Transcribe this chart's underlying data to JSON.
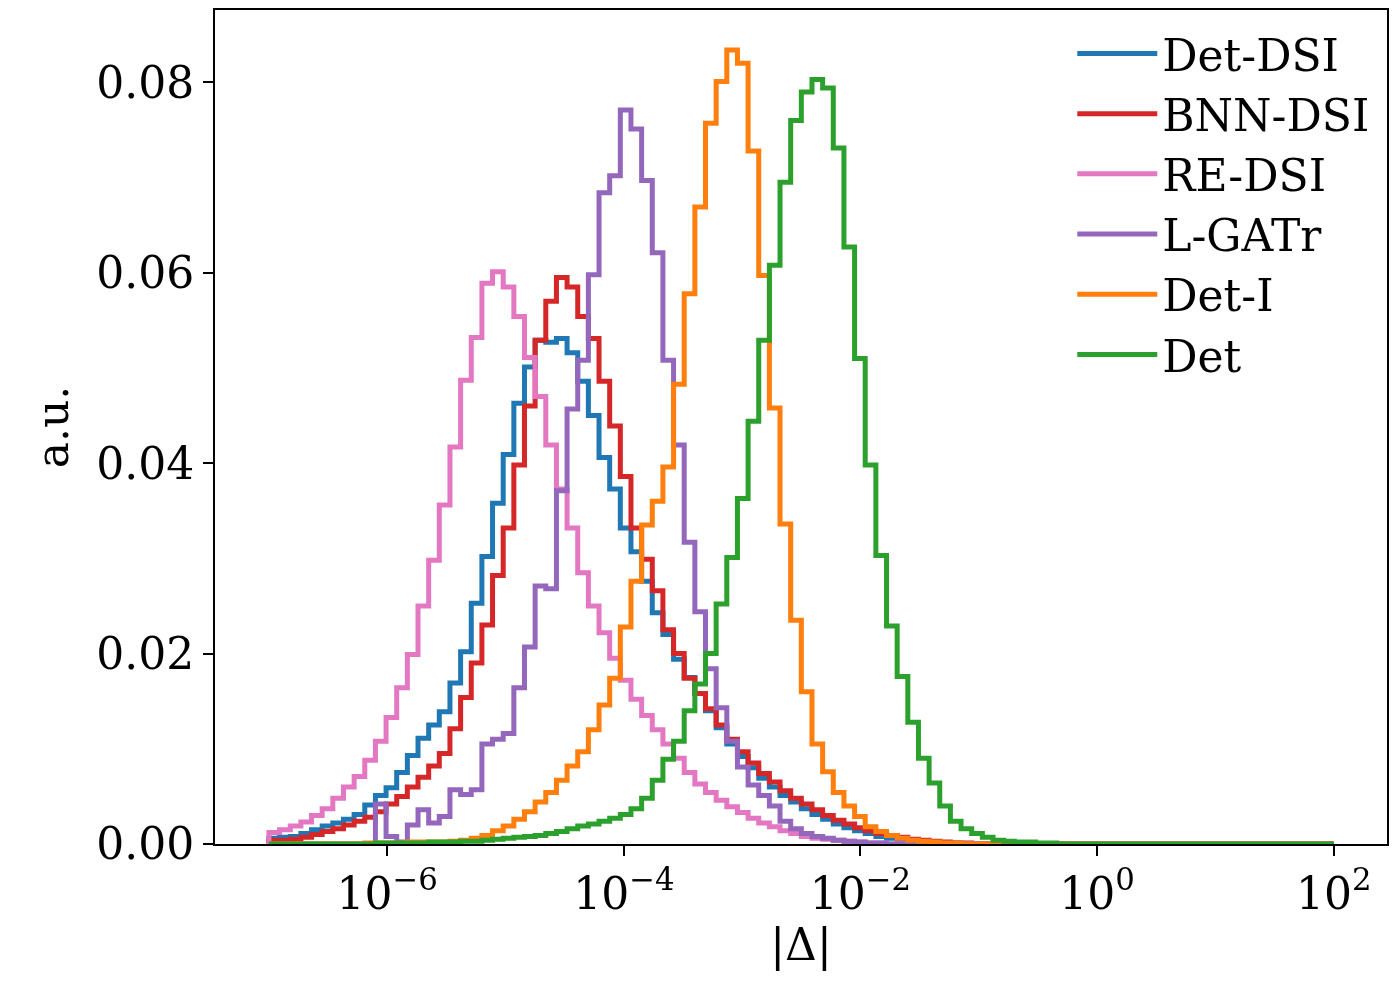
{
  "chart_data": {
    "type": "histogram",
    "xlabel": "|Δ|",
    "ylabel": "a.u.",
    "log": "x",
    "xlim": [
      3.5e-08,
      282
    ],
    "ylim": [
      0,
      0.0876
    ],
    "xticks": [
      {
        "value": 1e-06,
        "label": "10$^{−6}$"
      },
      {
        "value": 0.0001,
        "label": "10$^{−4}$"
      },
      {
        "value": 0.01,
        "label": "10$^{−2}$"
      },
      {
        "value": 1,
        "label": "10$^{0}$"
      },
      {
        "value": 100,
        "label": "10$^{2}$"
      }
    ],
    "yticks": [
      {
        "value": 0,
        "label": "0.00"
      },
      {
        "value": 0.02,
        "label": "0.02"
      },
      {
        "value": 0.04,
        "label": "0.04"
      },
      {
        "value": 0.06,
        "label": "0.06"
      },
      {
        "value": 0.08,
        "label": "0.08"
      }
    ],
    "legend": "top right",
    "line_style": "solid",
    "bins": [
      1e-07,
      1.23e-07,
      1.514e-07,
      1.862e-07,
      2.291e-07,
      2.818e-07,
      3.467e-07,
      4.266e-07,
      5.248e-07,
      6.457e-07,
      7.943e-07,
      9.772e-07,
      1.202e-06,
      1.479e-06,
      1.82e-06,
      2.239e-06,
      2.754e-06,
      3.388e-06,
      4.169e-06,
      5.129e-06,
      6.31e-06,
      7.762e-06,
      9.55e-06,
      1.175e-05,
      1.445e-05,
      1.778e-05,
      2.188e-05,
      2.692e-05,
      3.311e-05,
      4.074e-05,
      5.012e-05,
      6.166e-05,
      7.586e-05,
      9.333e-05,
      0.0001148,
      0.0001413,
      0.0001738,
      0.0002138,
      0.000263,
      0.0003236,
      0.0003981,
      0.0004898,
      0.0006026,
      0.0007413,
      0.000912,
      0.001122,
      0.00138,
      0.001698,
      0.002089,
      0.00257,
      0.003162,
      0.00389,
      0.004786,
      0.005888,
      0.007244,
      0.008913,
      0.01096,
      0.01349,
      0.0166,
      0.02042,
      0.02512,
      0.0309,
      0.03802,
      0.04677,
      0.05754,
      0.07079,
      0.0871,
      0.1072,
      0.1318,
      0.1622,
      0.1995,
      0.2455,
      0.302,
      0.3715,
      0.4571,
      0.5623,
      0.6918,
      0.8511,
      1.047,
      1.288,
      1.585,
      1.95,
      2.399,
      2.951,
      3.631,
      4.467,
      5.495,
      6.761,
      8.318,
      10.23,
      12.59,
      15.49,
      19.05,
      23.44,
      28.84,
      35.48,
      43.65,
      53.7,
      66.07,
      81.28,
      100
    ],
    "series": [
      {
        "name": "Det-DSI",
        "color": "#1f77b4",
        "values": [
          0.0006,
          0.0007,
          0.0008,
          0.0011,
          0.0015,
          0.0019,
          0.0022,
          0.0026,
          0.0031,
          0.0041,
          0.0051,
          0.0059,
          0.0075,
          0.0093,
          0.0111,
          0.0125,
          0.0139,
          0.0169,
          0.0202,
          0.0253,
          0.0302,
          0.0358,
          0.0409,
          0.0463,
          0.0501,
          0.0529,
          0.0527,
          0.0531,
          0.0516,
          0.0486,
          0.045,
          0.0406,
          0.0373,
          0.0332,
          0.0307,
          0.0276,
          0.0243,
          0.022,
          0.0194,
          0.0175,
          0.0158,
          0.014,
          0.0122,
          0.0105,
          0.0092,
          0.008,
          0.0069,
          0.006,
          0.0051,
          0.0044,
          0.0037,
          0.0031,
          0.0026,
          0.0021,
          0.0017,
          0.0014,
          0.0011,
          0.0008,
          0.0006,
          0.0005,
          0.0004,
          0.0003,
          0.0002,
          0.0001,
          0.0001,
          0,
          0,
          0,
          0,
          0,
          0,
          0,
          0,
          0,
          0,
          0,
          0,
          0,
          0,
          0,
          0,
          0,
          0,
          0,
          0,
          0,
          0,
          0,
          0,
          0,
          0,
          0,
          0,
          0,
          0,
          0,
          0,
          0,
          0,
          0
        ]
      },
      {
        "name": "BNN-DSI",
        "color": "#d62728",
        "values": [
          0.0004,
          0.0004,
          0.0005,
          0.0007,
          0.001,
          0.0013,
          0.0016,
          0.002,
          0.0024,
          0.0028,
          0.0034,
          0.0042,
          0.005,
          0.006,
          0.007,
          0.0082,
          0.0095,
          0.0121,
          0.0154,
          0.019,
          0.023,
          0.0282,
          0.0332,
          0.0398,
          0.046,
          0.0529,
          0.057,
          0.0595,
          0.0585,
          0.0554,
          0.0531,
          0.0486,
          0.0439,
          0.0386,
          0.0332,
          0.0299,
          0.0266,
          0.0225,
          0.02,
          0.0174,
          0.0158,
          0.0142,
          0.0125,
          0.011,
          0.0097,
          0.0085,
          0.0074,
          0.0065,
          0.0056,
          0.0048,
          0.0042,
          0.0036,
          0.003,
          0.0025,
          0.0021,
          0.0017,
          0.0014,
          0.0011,
          0.0009,
          0.0007,
          0.0005,
          0.0004,
          0.0003,
          0.0002,
          0.0001,
          0.0001,
          0,
          0,
          0,
          0,
          0,
          0,
          0,
          0,
          0,
          0,
          0,
          0,
          0,
          0,
          0,
          0,
          0,
          0,
          0,
          0,
          0,
          0,
          0,
          0,
          0,
          0,
          0,
          0,
          0,
          0,
          0,
          0,
          0,
          0
        ]
      },
      {
        "name": "RE-DSI",
        "color": "#e377c2",
        "values": [
          0.0012,
          0.0015,
          0.0019,
          0.0023,
          0.003,
          0.0037,
          0.0048,
          0.006,
          0.0071,
          0.0088,
          0.0108,
          0.0133,
          0.0164,
          0.0199,
          0.025,
          0.0298,
          0.0356,
          0.0417,
          0.0487,
          0.0532,
          0.0589,
          0.0601,
          0.0585,
          0.0554,
          0.0511,
          0.047,
          0.0419,
          0.0373,
          0.0332,
          0.0285,
          0.025,
          0.0222,
          0.0195,
          0.0172,
          0.0152,
          0.0135,
          0.012,
          0.0105,
          0.009,
          0.0075,
          0.0063,
          0.0054,
          0.0046,
          0.0039,
          0.0033,
          0.0027,
          0.0022,
          0.0018,
          0.0014,
          0.0011,
          0.0008,
          0.0006,
          0.0005,
          0.0004,
          0.0003,
          0.0002,
          0.0001,
          0.0001,
          0,
          0,
          0,
          0,
          0,
          0,
          0,
          0,
          0,
          0,
          0,
          0,
          0,
          0,
          0,
          0,
          0,
          0,
          0,
          0,
          0,
          0,
          0,
          0,
          0,
          0,
          0,
          0,
          0,
          0,
          0,
          0,
          0,
          0,
          0,
          0,
          0,
          0,
          0,
          0,
          0,
          0
        ]
      },
      {
        "name": "L-GATr",
        "color": "#9467bd",
        "values": [
          0,
          0,
          0,
          0,
          0,
          0,
          0,
          0,
          0,
          0,
          0.0042,
          0.0008,
          0.0002,
          0.002,
          0.0036,
          0.0022,
          0.0029,
          0.0057,
          0.0052,
          0.0057,
          0.0105,
          0.011,
          0.0116,
          0.0164,
          0.0207,
          0.0271,
          0.0268,
          0.0371,
          0.0457,
          0.0508,
          0.0598,
          0.0684,
          0.0702,
          0.0771,
          0.0751,
          0.0697,
          0.0621,
          0.0508,
          0.0419,
          0.0317,
          0.0244,
          0.0184,
          0.0143,
          0.0108,
          0.0081,
          0.0062,
          0.0051,
          0.004,
          0.0024,
          0.0016,
          0.0011,
          0.0008,
          0.0006,
          0.0004,
          0.0003,
          0.0002,
          0.0001,
          0.0001,
          0,
          0,
          0,
          0,
          0,
          0,
          0,
          0,
          0,
          0,
          0,
          0,
          0,
          0,
          0,
          0,
          0,
          0,
          0,
          0,
          0,
          0,
          0,
          0,
          0,
          0,
          0,
          0,
          0,
          0,
          0,
          0,
          0,
          0,
          0,
          0,
          0,
          0,
          0,
          0,
          0,
          0
        ]
      },
      {
        "name": "Det-I",
        "color": "#ff7f0e",
        "values": [
          0,
          0,
          0,
          0,
          0,
          0,
          0,
          0,
          0,
          0.0001,
          0.0001,
          0.0001,
          0.0001,
          0.0002,
          0.0002,
          0.0002,
          0.0002,
          0.0003,
          0.0004,
          0.0006,
          0.0009,
          0.0014,
          0.0019,
          0.0026,
          0.0034,
          0.0044,
          0.0054,
          0.0067,
          0.0082,
          0.0097,
          0.012,
          0.0146,
          0.0174,
          0.0228,
          0.0276,
          0.0335,
          0.036,
          0.0396,
          0.0483,
          0.0578,
          0.0669,
          0.0757,
          0.0801,
          0.0834,
          0.082,
          0.0728,
          0.0597,
          0.0458,
          0.0336,
          0.0235,
          0.016,
          0.0105,
          0.0076,
          0.0054,
          0.004,
          0.0029,
          0.0018,
          0.0013,
          0.0009,
          0.0006,
          0.0004,
          0.0003,
          0.0002,
          0.0001,
          0.0001,
          0,
          0,
          0,
          0,
          0,
          0,
          0,
          0,
          0,
          0,
          0,
          0,
          0,
          0,
          0,
          0,
          0,
          0,
          0,
          0,
          0,
          0,
          0,
          0,
          0,
          0,
          0,
          0,
          0,
          0,
          0,
          0,
          0,
          0,
          0
        ]
      },
      {
        "name": "Det",
        "color": "#2ca02c",
        "values": [
          0,
          0,
          0,
          0,
          0,
          0,
          0,
          0,
          0,
          0,
          0.0001,
          0.0001,
          0.0001,
          0.0001,
          0.0001,
          0.0002,
          0.0002,
          0.0002,
          0.0003,
          0.0003,
          0.0004,
          0.0005,
          0.0006,
          0.0007,
          0.0008,
          0.0009,
          0.0011,
          0.0013,
          0.0016,
          0.0019,
          0.0021,
          0.0024,
          0.0027,
          0.0031,
          0.0037,
          0.0048,
          0.0067,
          0.0089,
          0.0108,
          0.014,
          0.0168,
          0.02,
          0.0252,
          0.0301,
          0.0363,
          0.0444,
          0.0529,
          0.0608,
          0.0695,
          0.076,
          0.079,
          0.0803,
          0.0794,
          0.0731,
          0.0627,
          0.051,
          0.0398,
          0.0303,
          0.0229,
          0.0176,
          0.0128,
          0.009,
          0.0064,
          0.004,
          0.0024,
          0.0016,
          0.0011,
          0.0007,
          0.0004,
          0.0003,
          0.0002,
          0.0002,
          0.0001,
          0.0001,
          0,
          0,
          0,
          0,
          0,
          0,
          0,
          0,
          0,
          0,
          0,
          0,
          0,
          0,
          0,
          0,
          0,
          0,
          0,
          0,
          0,
          0,
          0,
          0,
          0,
          0
        ]
      }
    ]
  }
}
